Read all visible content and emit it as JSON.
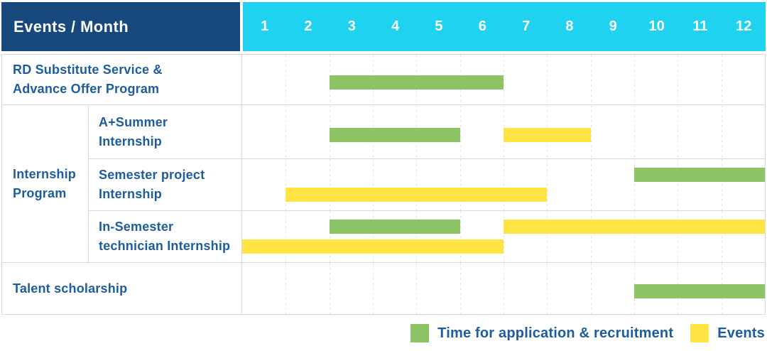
{
  "header": {
    "title": "Events / Month",
    "months": [
      "1",
      "2",
      "3",
      "4",
      "5",
      "6",
      "7",
      "8",
      "9",
      "10",
      "11",
      "12"
    ]
  },
  "colors": {
    "header_navy": "#17497E",
    "header_cyan": "#1FD3F0",
    "application_green": "#8CC466",
    "event_yellow": "#FFE243",
    "label_blue": "#1D5C9E",
    "grid_line": "#E3E3E3",
    "row_border": "#D9D9D9"
  },
  "legend": {
    "items": [
      {
        "kind": "application",
        "label": "Time for application & recruitment"
      },
      {
        "kind": "event",
        "label": "Events"
      }
    ]
  },
  "chart_data": {
    "type": "gantt",
    "x_label": "Month",
    "x_ticks": [
      1,
      2,
      3,
      4,
      5,
      6,
      7,
      8,
      9,
      10,
      11,
      12
    ],
    "x_range": [
      1,
      12
    ],
    "grid": "dashed-vertical-per-month",
    "legend_mapping": {
      "application": "Time for application & recruitment (green)",
      "event": "Events (yellow)"
    },
    "group_label": "Internship Program",
    "group_label_lines": [
      "Internship",
      "Program"
    ],
    "rows": [
      {
        "id": "rd-substitute-service",
        "label": "RD Substitute Service & Advance Offer Program",
        "label_lines": [
          "RD Substitute Service &",
          "Advance Offer Program"
        ],
        "bars": [
          {
            "kind": "application",
            "start_month": 3,
            "end_month": 6,
            "lane": "single"
          }
        ]
      },
      {
        "id": "a-plus-summer-internship",
        "group": "Internship Program",
        "label": "A+Summer Internship",
        "label_lines": [
          "A+Summer",
          "Internship"
        ],
        "bars": [
          {
            "kind": "application",
            "start_month": 3,
            "end_month": 5,
            "lane": "single"
          },
          {
            "kind": "event",
            "start_month": 7,
            "end_month": 8,
            "lane": "single"
          }
        ]
      },
      {
        "id": "semester-project-internship",
        "group": "Internship Program",
        "label": "Semester project Internship",
        "label_lines": [
          "Semester project",
          "Internship"
        ],
        "bars": [
          {
            "kind": "application",
            "start_month": 10,
            "end_month": 12,
            "lane": "top"
          },
          {
            "kind": "event",
            "start_month": 2,
            "end_month": 7,
            "lane": "bottom"
          }
        ]
      },
      {
        "id": "in-semester-technician-internship",
        "group": "Internship Program",
        "label": "In-Semester technician Internship",
        "label_lines": [
          "In-Semester",
          "technician Internship"
        ],
        "bars": [
          {
            "kind": "application",
            "start_month": 3,
            "end_month": 5,
            "lane": "top"
          },
          {
            "kind": "event",
            "start_month": 7,
            "end_month": 12,
            "lane": "top"
          },
          {
            "kind": "event",
            "start_month": 1,
            "end_month": 6,
            "lane": "bottom"
          }
        ]
      },
      {
        "id": "talent-scholarship",
        "label": "Talent scholarship",
        "label_lines": [
          "Talent scholarship"
        ],
        "bars": [
          {
            "kind": "application",
            "start_month": 10,
            "end_month": 12,
            "lane": "single"
          }
        ]
      }
    ]
  }
}
